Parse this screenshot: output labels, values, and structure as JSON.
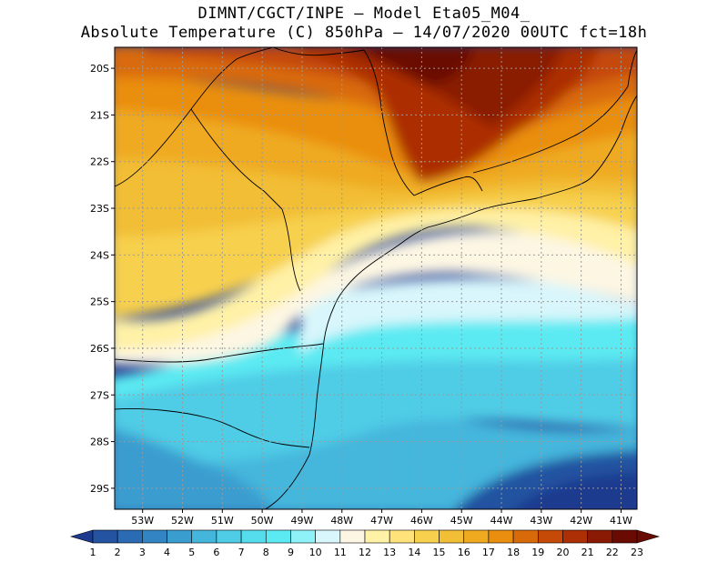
{
  "header": {
    "title_line1": "DIMNT/CGCT/INPE –  Model Eta05_M04_",
    "title_line2": "Absolute Temperature (C) 850hPa –  14/07/2020 00UTC fct=18h"
  },
  "map": {
    "lat_labels": [
      "20S",
      "21S",
      "22S",
      "23S",
      "24S",
      "25S",
      "26S",
      "27S",
      "28S",
      "29S"
    ],
    "lon_labels": [
      "53W",
      "52W",
      "51W",
      "50W",
      "49W",
      "48W",
      "47W",
      "46W",
      "45W",
      "44W",
      "43W",
      "42W",
      "41W"
    ],
    "lat_values": [
      -20,
      -21,
      -22,
      -23,
      -24,
      -25,
      -26,
      -27,
      -28,
      -29
    ],
    "lon_values": [
      -53,
      -52,
      -51,
      -50,
      -49,
      -48,
      -47,
      -46,
      -45,
      -44,
      -43,
      -42,
      -41
    ],
    "extent": {
      "lon_min": -53.7,
      "lon_max": -40.6,
      "lat_max": -19.55,
      "lat_min": -29.45
    },
    "gridlines": true
  },
  "colorbar": {
    "labels": [
      "1",
      "2",
      "3",
      "4",
      "5",
      "6",
      "7",
      "8",
      "9",
      "10",
      "11",
      "12",
      "13",
      "14",
      "15",
      "16",
      "17",
      "18",
      "19",
      "20",
      "21",
      "22",
      "23"
    ],
    "colors": [
      "#1e3a8f",
      "#2453a1",
      "#2a6bb3",
      "#3285c2",
      "#3a9dcf",
      "#44b6dc",
      "#4fcce6",
      "#55dded",
      "#5ceaf2",
      "#8ff2f8",
      "#d8f6fb",
      "#fdf6e3",
      "#fff1a6",
      "#ffe37a",
      "#f7d04d",
      "#f2be36",
      "#efaa20",
      "#ea8e10",
      "#d96a0a",
      "#c54a07",
      "#ac2f05",
      "#8a1a04",
      "#6a0b03"
    ]
  }
}
